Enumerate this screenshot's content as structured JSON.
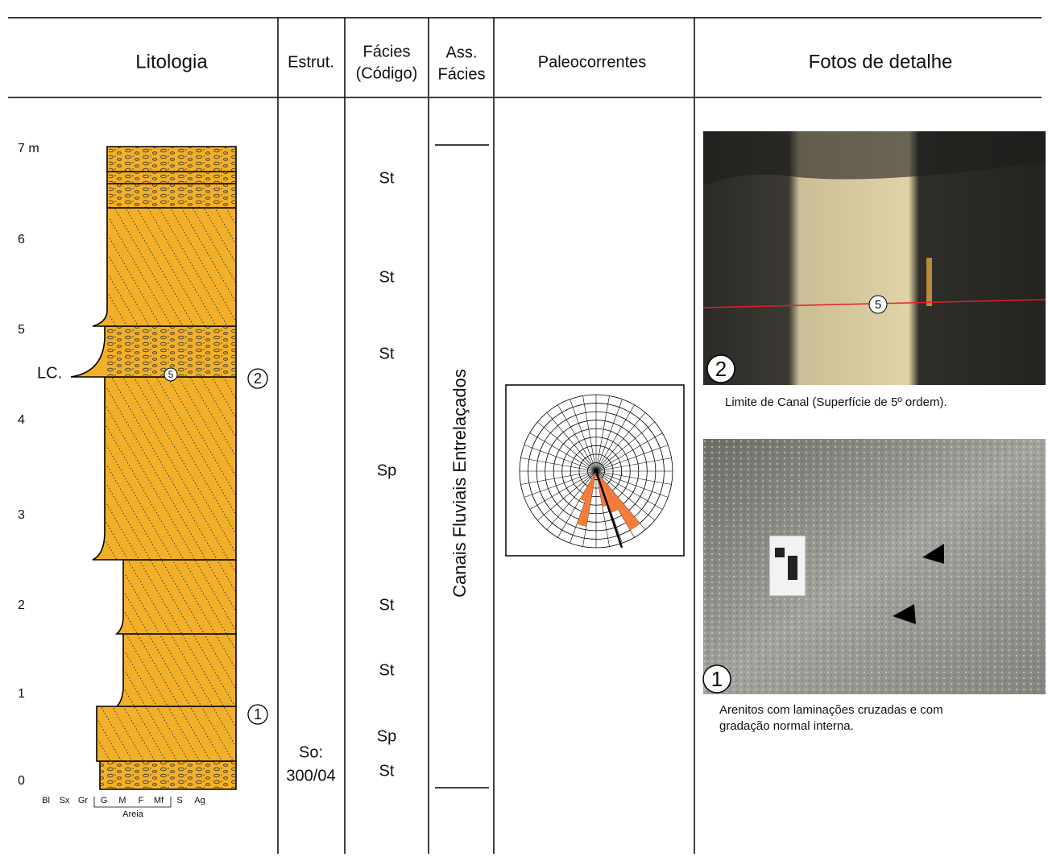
{
  "header": {
    "columns": [
      [
        "Litologia"
      ],
      [
        "Estrut."
      ],
      [
        "Fácies",
        "(Código)"
      ],
      [
        "Ass.",
        "Fácies"
      ],
      [
        "Paleocorrentes"
      ],
      [
        "Fotos de detalhe"
      ]
    ]
  },
  "lithology": {
    "depth_labels": [
      "7 m",
      "6",
      "5",
      "4",
      "3",
      "2",
      "1",
      "0"
    ],
    "grain_scale": [
      "Bl",
      "Sx",
      "Gr",
      "G",
      "M",
      "F",
      "Mf",
      "S",
      "Ag"
    ],
    "grain_group": "Areia",
    "boundary_label": "LC.",
    "surface_order": "5",
    "photo_refs": [
      "2",
      "1"
    ]
  },
  "structure": {
    "lines": [
      "So:",
      "300/04"
    ]
  },
  "facies_codes": [
    "St",
    "St",
    "St",
    "Sp",
    "St",
    "St",
    "Sp",
    "St"
  ],
  "facies_association": "Canais Fluviais Entrelaçados",
  "photos": [
    {
      "number": "2",
      "marker": "5",
      "caption": [
        "Limite de Canal (Superfície de 5º ordem)."
      ]
    },
    {
      "number": "1",
      "caption": [
        "Arenitos com laminações cruzadas e com",
        "gradação normal interna."
      ]
    }
  ]
}
